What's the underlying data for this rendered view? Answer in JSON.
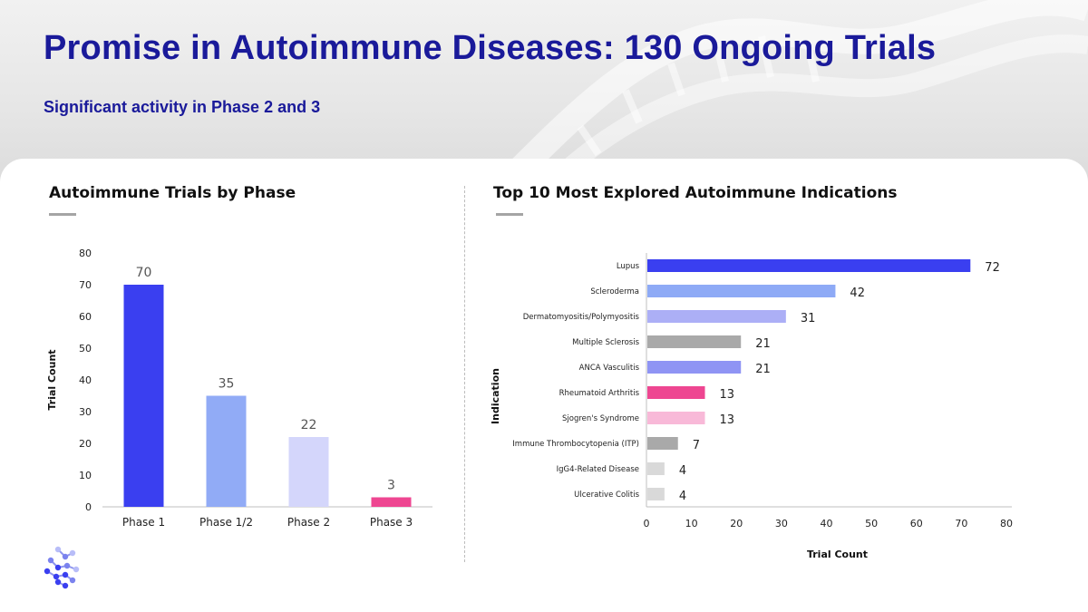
{
  "slide": {
    "title": "Promise in Autoimmune Diseases: 130 Ongoing Trials",
    "subtitle": "Significant activity in Phase 2 and 3"
  },
  "colors": {
    "title": "#1a1a9a",
    "underline": "#a5a5a5"
  },
  "icons": {
    "logo": "dna-dots-logo-icon"
  },
  "chart_data": [
    {
      "type": "bar",
      "orientation": "vertical",
      "title": "Autoimmune Trials by Phase",
      "xlabel": "",
      "ylabel": "Trial Count",
      "categories": [
        "Phase 1",
        "Phase 1/2",
        "Phase 2",
        "Phase 3"
      ],
      "values": [
        70,
        35,
        22,
        3
      ],
      "colors": [
        "#3a3ff0",
        "#91abf6",
        "#d4d6fb",
        "#ee4691"
      ],
      "ylim": [
        0,
        80
      ],
      "yticks": [
        0,
        10,
        20,
        30,
        40,
        50,
        60,
        70,
        80
      ],
      "data_labels": true,
      "grid": false
    },
    {
      "type": "bar",
      "orientation": "horizontal",
      "title": "Top 10 Most Explored Autoimmune Indications",
      "xlabel": "Trial Count",
      "ylabel": "Indication",
      "categories": [
        "Lupus",
        "Scleroderma",
        "Dermatomyositis/Polymyositis",
        "Multiple Sclerosis",
        "ANCA Vasculitis",
        "Rheumatoid Arthritis",
        "Sjogren's Syndrome",
        "Immune Thrombocytopenia (ITP)",
        "IgG4-Related Disease",
        "Ulcerative Colitis"
      ],
      "values": [
        72,
        42,
        31,
        21,
        21,
        13,
        13,
        7,
        4,
        4
      ],
      "colors": [
        "#3a3ff0",
        "#8eaaf6",
        "#acaff6",
        "#a9a9a9",
        "#8f94f4",
        "#ee4691",
        "#f8b9d8",
        "#a9a9a9",
        "#d9d9d9",
        "#d9d9d9"
      ],
      "xlim": [
        0,
        80
      ],
      "xticks": [
        0,
        10,
        20,
        30,
        40,
        50,
        60,
        70,
        80
      ],
      "data_labels": true,
      "grid": false
    }
  ]
}
